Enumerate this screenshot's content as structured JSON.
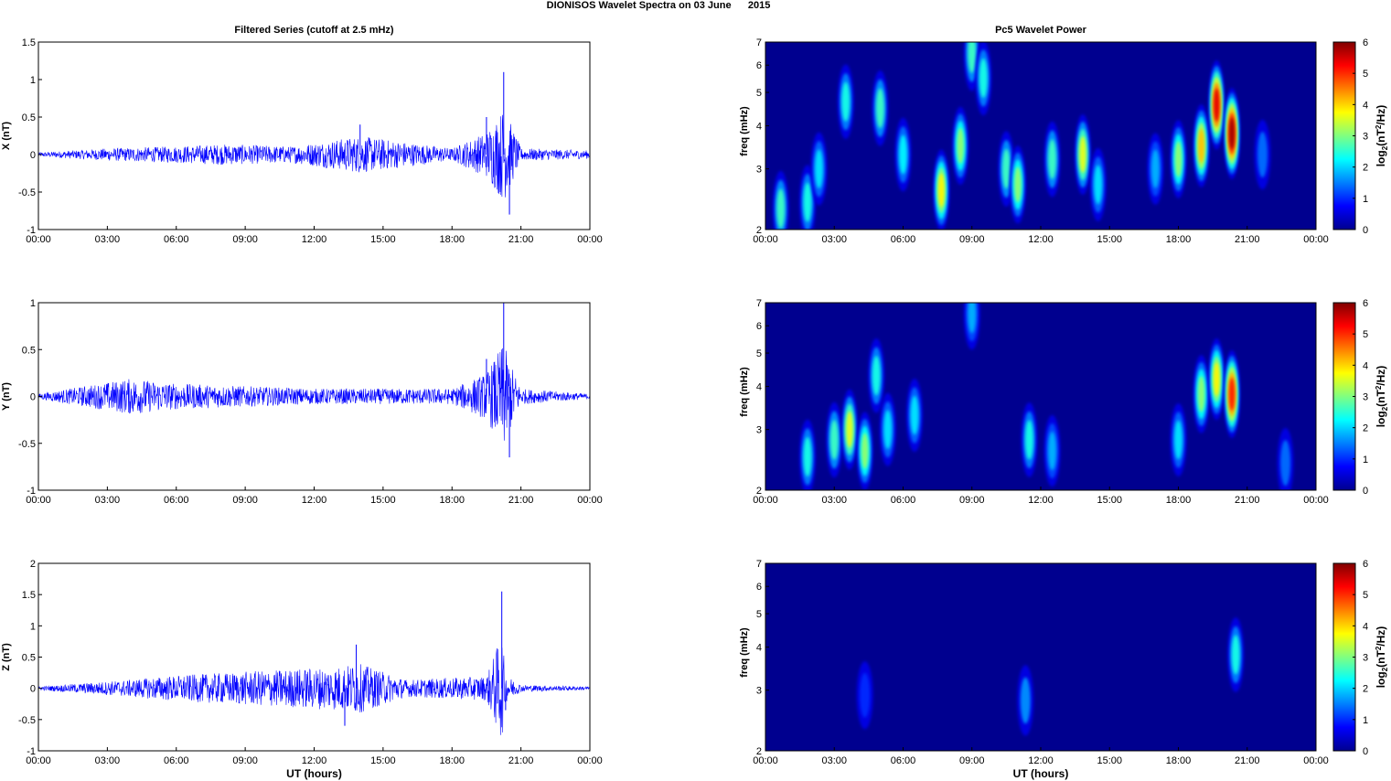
{
  "figure_title": "DIONISOS Wavelet Spectra on 03 June      2015",
  "colors": {
    "signal": "#0000ff",
    "spectrogram_background": "#00008f",
    "axis": "#000000"
  },
  "chart_data": [
    {
      "type": "line",
      "title": "Filtered Series (cutoff at 2.5 mHz)",
      "xlabel": "",
      "ylabel": "X (nT)",
      "xticks": [
        "00:00",
        "03:00",
        "06:00",
        "09:00",
        "12:00",
        "15:00",
        "18:00",
        "21:00",
        "00:00"
      ],
      "ylim": [
        -1,
        1.5
      ],
      "yticks": [
        "-1",
        "-0.5",
        "0",
        "0.5",
        "1",
        "1.5"
      ],
      "series": [
        {
          "values": [
            {
              "x": "00:00",
              "y": 0.0
            },
            {
              "x": "03:00",
              "y": 0.1
            },
            {
              "x": "06:00",
              "y": 0.15
            },
            {
              "x": "08:00",
              "y": 0.2
            },
            {
              "x": "11:00",
              "y": 0.15
            },
            {
              "x": "14:00",
              "y": 0.4
            },
            {
              "x": "18:00",
              "y": 0.1
            },
            {
              "x": "19:30",
              "y": 0.5
            },
            {
              "x": "20:15",
              "y": 1.1
            },
            {
              "x": "20:30",
              "y": -0.8
            },
            {
              "x": "21:00",
              "y": 0.1
            },
            {
              "x": "00:00",
              "y": 0.05
            }
          ]
        }
      ]
    },
    {
      "type": "heatmap",
      "title": "Pc5 Wavelet Power",
      "xlabel": "",
      "ylabel": "freq (mHz)",
      "xticks": [
        "00:00",
        "03:00",
        "06:00",
        "09:00",
        "12:00",
        "15:00",
        "18:00",
        "21:00",
        "00:00"
      ],
      "yticks": [
        "2",
        "3",
        "4",
        "5",
        "6",
        "7"
      ],
      "ylim": [
        2,
        7
      ],
      "yscale": "log",
      "colorbar": {
        "label": "log2(nT2/Hz)",
        "range": [
          0,
          6
        ],
        "ticks": [
          "0",
          "1",
          "2",
          "3",
          "4",
          "5",
          "6"
        ]
      },
      "blobs": [
        {
          "t": "00:40",
          "f": 2.3,
          "p": 2.0
        },
        {
          "t": "01:50",
          "f": 2.4,
          "p": 1.8
        },
        {
          "t": "02:20",
          "f": 3.0,
          "p": 1.5
        },
        {
          "t": "03:30",
          "f": 4.7,
          "p": 1.8
        },
        {
          "t": "05:00",
          "f": 4.5,
          "p": 2.0
        },
        {
          "t": "06:00",
          "f": 3.3,
          "p": 1.6
        },
        {
          "t": "07:40",
          "f": 2.6,
          "p": 3.2
        },
        {
          "t": "08:30",
          "f": 3.5,
          "p": 2.5
        },
        {
          "t": "09:00",
          "f": 6.5,
          "p": 2.0
        },
        {
          "t": "09:30",
          "f": 5.5,
          "p": 1.8
        },
        {
          "t": "10:30",
          "f": 3.0,
          "p": 2.0
        },
        {
          "t": "11:00",
          "f": 2.7,
          "p": 2.5
        },
        {
          "t": "12:30",
          "f": 3.2,
          "p": 2.0
        },
        {
          "t": "13:50",
          "f": 3.3,
          "p": 3.0
        },
        {
          "t": "14:30",
          "f": 2.7,
          "p": 1.5
        },
        {
          "t": "17:00",
          "f": 3.0,
          "p": 1.2
        },
        {
          "t": "18:00",
          "f": 3.2,
          "p": 2.5
        },
        {
          "t": "19:00",
          "f": 3.5,
          "p": 3.5
        },
        {
          "t": "19:40",
          "f": 4.6,
          "p": 4.8
        },
        {
          "t": "20:20",
          "f": 3.8,
          "p": 5.2
        },
        {
          "t": "21:40",
          "f": 3.3,
          "p": 0.8
        }
      ]
    },
    {
      "type": "line",
      "title": "",
      "xlabel": "",
      "ylabel": "Y (nT)",
      "xticks": [
        "00:00",
        "03:00",
        "06:00",
        "09:00",
        "12:00",
        "15:00",
        "18:00",
        "21:00",
        "00:00"
      ],
      "ylim": [
        -1,
        1
      ],
      "yticks": [
        "-1",
        "-0.5",
        "0",
        "0.5",
        "1"
      ],
      "series": [
        {
          "values": [
            {
              "x": "00:00",
              "y": 0.0
            },
            {
              "x": "04:00",
              "y": 0.3
            },
            {
              "x": "06:00",
              "y": 0.2
            },
            {
              "x": "12:00",
              "y": 0.1
            },
            {
              "x": "18:00",
              "y": 0.1
            },
            {
              "x": "19:30",
              "y": 0.4
            },
            {
              "x": "20:15",
              "y": 1.0
            },
            {
              "x": "20:30",
              "y": -0.65
            },
            {
              "x": "21:00",
              "y": 0.1
            },
            {
              "x": "00:00",
              "y": 0.0
            }
          ]
        }
      ]
    },
    {
      "type": "heatmap",
      "title": "",
      "xlabel": "",
      "ylabel": "freq (mHz)",
      "xticks": [
        "00:00",
        "03:00",
        "06:00",
        "09:00",
        "12:00",
        "15:00",
        "18:00",
        "21:00",
        "00:00"
      ],
      "yticks": [
        "2",
        "3",
        "4",
        "5",
        "6",
        "7"
      ],
      "ylim": [
        2,
        7
      ],
      "yscale": "log",
      "colorbar": {
        "label": "log2(nT2/Hz)",
        "range": [
          0,
          6
        ],
        "ticks": [
          "0",
          "1",
          "2",
          "3",
          "4",
          "5",
          "6"
        ]
      },
      "blobs": [
        {
          "t": "01:50",
          "f": 2.5,
          "p": 1.8
        },
        {
          "t": "03:00",
          "f": 2.8,
          "p": 2.0
        },
        {
          "t": "03:40",
          "f": 3.0,
          "p": 3.0
        },
        {
          "t": "04:20",
          "f": 2.6,
          "p": 2.5
        },
        {
          "t": "04:50",
          "f": 4.3,
          "p": 1.8
        },
        {
          "t": "05:20",
          "f": 3.0,
          "p": 1.5
        },
        {
          "t": "06:30",
          "f": 3.3,
          "p": 1.5
        },
        {
          "t": "09:00",
          "f": 6.5,
          "p": 1.2
        },
        {
          "t": "11:30",
          "f": 2.8,
          "p": 1.8
        },
        {
          "t": "12:30",
          "f": 2.6,
          "p": 1.2
        },
        {
          "t": "18:00",
          "f": 2.8,
          "p": 1.5
        },
        {
          "t": "19:00",
          "f": 3.8,
          "p": 2.5
        },
        {
          "t": "19:40",
          "f": 4.2,
          "p": 3.2
        },
        {
          "t": "20:20",
          "f": 3.8,
          "p": 4.5
        },
        {
          "t": "22:40",
          "f": 2.4,
          "p": 0.8
        }
      ]
    },
    {
      "type": "line",
      "title": "",
      "xlabel": "UT (hours)",
      "ylabel": "Z (nT)",
      "xticks": [
        "00:00",
        "03:00",
        "06:00",
        "09:00",
        "12:00",
        "15:00",
        "18:00",
        "21:00",
        "00:00"
      ],
      "ylim": [
        -1,
        2
      ],
      "yticks": [
        "-1",
        "-0.5",
        "0",
        "0.5",
        "1",
        "1.5",
        "2"
      ],
      "series": [
        {
          "values": [
            {
              "x": "00:00",
              "y": 0.0
            },
            {
              "x": "04:00",
              "y": 0.2
            },
            {
              "x": "05:30",
              "y": 0.3
            },
            {
              "x": "13:20",
              "y": -0.6
            },
            {
              "x": "13:50",
              "y": 0.7
            },
            {
              "x": "16:00",
              "y": 0.2
            },
            {
              "x": "19:30",
              "y": 0.3
            },
            {
              "x": "20:10",
              "y": 1.55
            },
            {
              "x": "20:20",
              "y": -0.35
            },
            {
              "x": "21:00",
              "y": 0.05
            },
            {
              "x": "00:00",
              "y": 0.0
            }
          ]
        }
      ]
    },
    {
      "type": "heatmap",
      "title": "",
      "xlabel": "UT (hours)",
      "ylabel": "freq (mHz)",
      "xticks": [
        "00:00",
        "03:00",
        "06:00",
        "09:00",
        "12:00",
        "15:00",
        "18:00",
        "21:00",
        "00:00"
      ],
      "yticks": [
        "2",
        "3",
        "4",
        "5",
        "6",
        "7"
      ],
      "ylim": [
        2,
        7
      ],
      "yscale": "log",
      "colorbar": {
        "label": "log2(nT2/Hz)",
        "range": [
          0,
          6
        ],
        "ticks": [
          "0",
          "1",
          "2",
          "3",
          "4",
          "5",
          "6"
        ]
      },
      "blobs": [
        {
          "t": "04:20",
          "f": 2.9,
          "p": 0.4
        },
        {
          "t": "11:20",
          "f": 2.8,
          "p": 1.0
        },
        {
          "t": "20:30",
          "f": 3.8,
          "p": 1.8
        }
      ]
    }
  ]
}
